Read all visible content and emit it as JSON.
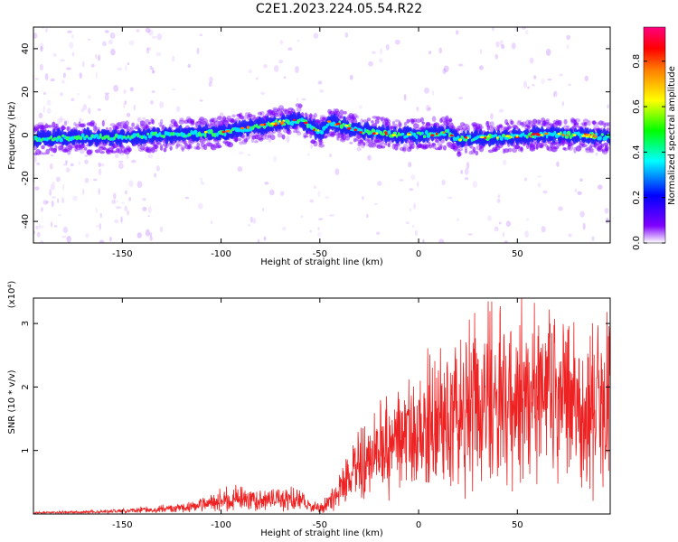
{
  "title": "C2E1.2023.224.05.54.R22",
  "chart_data": [
    {
      "type": "heatmap",
      "xlabel": "Height of straight line (km)",
      "ylabel": "Frequency (Hz)",
      "xlim": [
        -195,
        97
      ],
      "ylim": [
        -50,
        50
      ],
      "xticks": [
        -150,
        -100,
        -50,
        0,
        50
      ],
      "yticks": [
        -40,
        -20,
        0,
        20,
        40
      ],
      "colorbar": {
        "label": "Normalized spectral amplitude",
        "range": [
          0,
          0.95
        ],
        "ticks": [
          0.0,
          0.2,
          0.4,
          0.6,
          0.8
        ],
        "colormap": [
          "#ffffff",
          "#8000ff",
          "#0000ff",
          "#00ffff",
          "#00ff00",
          "#ffff00",
          "#ff8000",
          "#ff0000",
          "#ff0080"
        ]
      },
      "ridge": {
        "x": [
          -195,
          -175,
          -150,
          -125,
          -100,
          -75,
          -60,
          -50,
          -45,
          -40,
          -30,
          -20,
          -10,
          0,
          15,
          20,
          40,
          60,
          80,
          97
        ],
        "y": [
          -2,
          -1,
          -1,
          0,
          1,
          5,
          7,
          1,
          6,
          5,
          2,
          1,
          0,
          0,
          1,
          -2,
          -1,
          0,
          0,
          -1
        ]
      },
      "grid": false
    },
    {
      "type": "line",
      "xlabel": "Height of straight line (km)",
      "ylabel": "SNR (10 * v/v)",
      "scale_label": "(x10⁴)",
      "xlim": [
        -195,
        97
      ],
      "ylim": [
        0,
        3.4
      ],
      "xticks": [
        -150,
        -100,
        -50,
        0,
        50
      ],
      "yticks": [
        1,
        2,
        3
      ],
      "color": "#ee2222",
      "series": [
        {
          "x": [
            -195,
            -170,
            -150,
            -130,
            -120,
            -110,
            -100,
            -90,
            -80,
            -70,
            -60,
            -55,
            -50,
            -45,
            -40,
            -35,
            -30,
            -25,
            -20,
            -10,
            0,
            10,
            20,
            30,
            40,
            50,
            60,
            70,
            80,
            90,
            97
          ],
          "values": [
            0.02,
            0.03,
            0.05,
            0.08,
            0.1,
            0.14,
            0.22,
            0.25,
            0.22,
            0.22,
            0.26,
            0.12,
            0.1,
            0.18,
            0.35,
            0.6,
            0.75,
            0.85,
            1.0,
            1.15,
            1.3,
            1.4,
            1.55,
            1.75,
            1.85,
            1.75,
            1.8,
            1.85,
            1.75,
            1.7,
            1.75
          ]
        }
      ],
      "grid": false
    }
  ]
}
